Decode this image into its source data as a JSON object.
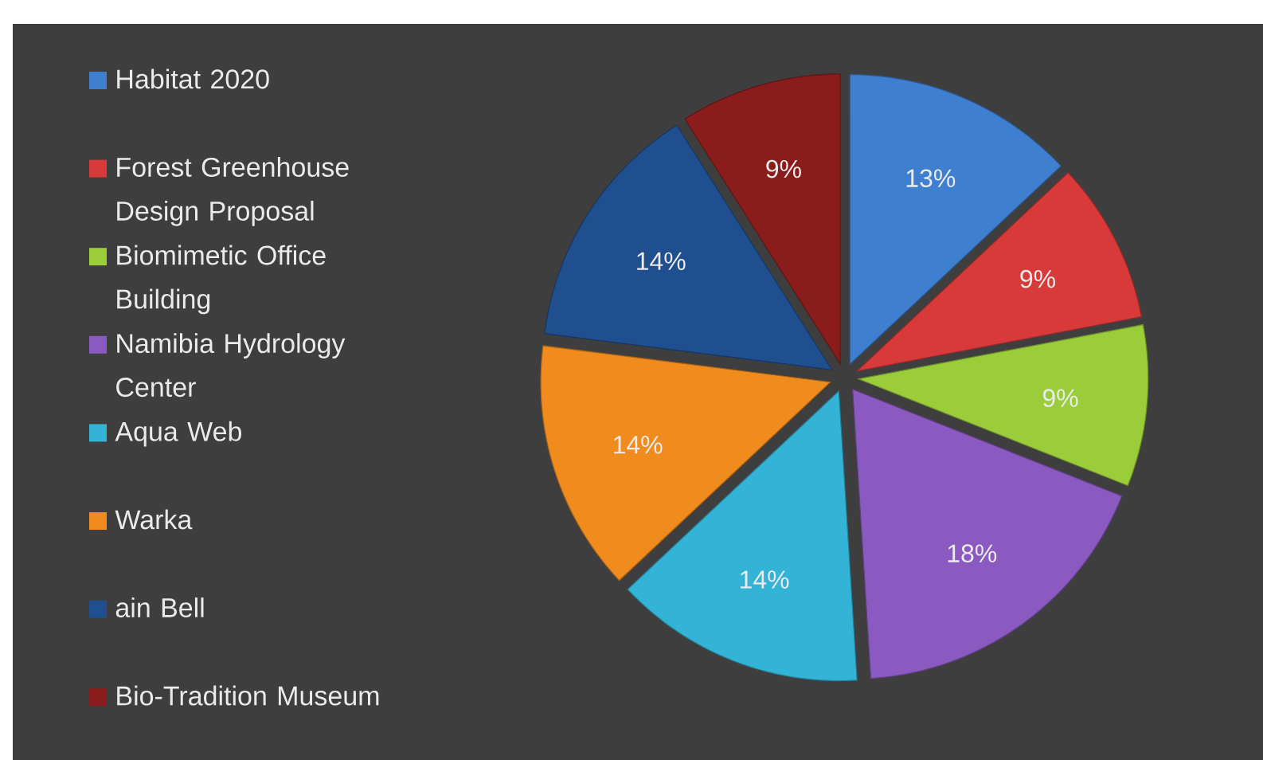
{
  "chart_data": {
    "type": "pie",
    "categories": [
      "Habitat 2020",
      "Forest Greenhouse Design Proposal",
      "Biomimetic Office Building",
      "Namibia Hydrology Center",
      "Aqua Web",
      "Warka",
      "ain Bell",
      "Bio-Tradition Museum"
    ],
    "values": [
      13,
      9,
      9,
      18,
      14,
      14,
      14,
      9
    ],
    "value_labels": [
      "13%",
      "9%",
      "9%",
      "18%",
      "14%",
      "14%",
      "14%",
      "9%"
    ],
    "colors": [
      "#3f7fd0",
      "#d83a3a",
      "#9bcd3a",
      "#8a5ac0",
      "#33b4d6",
      "#f08c1e",
      "#1f4f8e",
      "#8b1c1c"
    ],
    "legend": "left"
  }
}
